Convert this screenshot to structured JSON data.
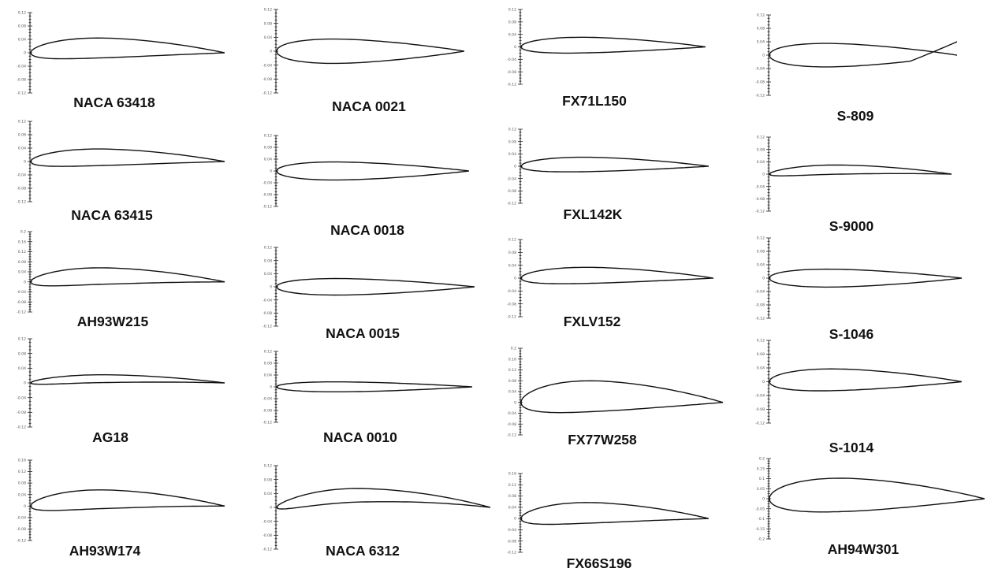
{
  "airfoils": [
    {
      "name": "NACA 63418",
      "type": "cambered",
      "t": 0.18,
      "camber": 0.025,
      "ticks": [
        "0.12",
        "0.08",
        "0.04",
        "0",
        "-0.04",
        "-0.08",
        "-0.12"
      ]
    },
    {
      "name": "NACA 63415",
      "type": "cambered",
      "t": 0.15,
      "camber": 0.022,
      "ticks": [
        "0.12",
        "0.08",
        "0.04",
        "0",
        "-0.04",
        "-0.08",
        "-0.12"
      ]
    },
    {
      "name": "AH93W215",
      "type": "cambered",
      "t": 0.15,
      "camber": 0.03,
      "ticks": [
        "0.2",
        "0.16",
        "0.12",
        "0.08",
        "0.04",
        "0",
        "-0.04",
        "-0.08",
        "-0.12"
      ]
    },
    {
      "name": "AG18",
      "type": "thin",
      "t": 0.065,
      "camber": 0.02,
      "ticks": [
        "0.12",
        "0.08",
        "0.04",
        "0",
        "-0.04",
        "-0.08",
        "-0.12"
      ]
    },
    {
      "name": "AH93W174",
      "type": "cambered",
      "t": 0.17,
      "camber": 0.035,
      "ticks": [
        "0.16",
        "0.12",
        "0.08",
        "0.04",
        "0",
        "-0.04",
        "-0.08",
        "-0.12"
      ]
    },
    {
      "name": "NACA 0021",
      "type": "symmetric",
      "t": 0.21,
      "camber": 0,
      "ticks": [
        "0.12",
        "0.08",
        "0.04",
        "0",
        "-0.04",
        "-0.08",
        "-0.12"
      ]
    },
    {
      "name": "NACA 0018",
      "type": "symmetric",
      "t": 0.18,
      "camber": 0,
      "ticks": [
        "0.12",
        "0.08",
        "0.04",
        "0",
        "-0.04",
        "-0.08",
        "-0.12"
      ]
    },
    {
      "name": "NACA 0015",
      "type": "symmetric",
      "t": 0.15,
      "camber": 0,
      "ticks": [
        "0.12",
        "0.08",
        "0.04",
        "0",
        "-0.04",
        "-0.08",
        "-0.12"
      ]
    },
    {
      "name": "NACA 0010",
      "type": "symmetric",
      "t": 0.1,
      "camber": 0,
      "ticks": [
        "0.12",
        "0.08",
        "0.04",
        "0",
        "-0.04",
        "-0.08",
        "-0.12"
      ]
    },
    {
      "name": "NACA 6312",
      "type": "high-camber",
      "t": 0.12,
      "camber": 0.06,
      "ticks": [
        "0.12",
        "0.08",
        "0.04",
        "0",
        "-0.04",
        "-0.08",
        "-0.12"
      ]
    },
    {
      "name": "FX71L150",
      "type": "cambered",
      "t": 0.15,
      "camber": 0.01,
      "ticks": [
        "0.12",
        "0.08",
        "0.04",
        "0",
        "-0.04",
        "-0.08",
        "-0.12"
      ]
    },
    {
      "name": "FXL142K",
      "type": "cambered",
      "t": 0.14,
      "camber": 0.01,
      "ticks": [
        "0.12",
        "0.08",
        "0.04",
        "0",
        "-0.04",
        "-0.08",
        "-0.12"
      ]
    },
    {
      "name": "FXLV152",
      "type": "cambered",
      "t": 0.15,
      "camber": 0.015,
      "ticks": [
        "0.12",
        "0.08",
        "0.04",
        "0",
        "-0.04",
        "-0.08",
        "-0.12"
      ]
    },
    {
      "name": "FX77W258",
      "type": "thick",
      "t": 0.26,
      "camber": 0.03,
      "ticks": [
        "0.2",
        "0.16",
        "0.12",
        "0.08",
        "0.04",
        "0",
        "-0.04",
        "-0.08",
        "-0.12"
      ]
    },
    {
      "name": "FX66S196",
      "type": "cambered",
      "t": 0.19,
      "camber": 0.03,
      "ticks": [
        "0.16",
        "0.12",
        "0.08",
        "0.04",
        "0",
        "-0.04",
        "-0.08",
        "-0.12"
      ]
    },
    {
      "name": "S-809",
      "type": "s809",
      "t": 0.21,
      "camber": 0,
      "ticks": [
        "0.12",
        "0.08",
        "0.04",
        "0",
        "-0.04",
        "-0.08",
        "-0.12"
      ]
    },
    {
      "name": "S-9000",
      "type": "thin",
      "t": 0.09,
      "camber": 0.025,
      "ticks": [
        "0.12",
        "0.08",
        "0.04",
        "0",
        "-0.04",
        "-0.08",
        "-0.12"
      ]
    },
    {
      "name": "S-1046",
      "type": "symmetric",
      "t": 0.16,
      "camber": 0,
      "ticks": [
        "0.12",
        "0.08",
        "0.04",
        "0",
        "-0.04",
        "-0.08",
        "-0.12"
      ]
    },
    {
      "name": "S-1014",
      "type": "thick",
      "t": 0.19,
      "camber": 0.01,
      "ticks": [
        "0.12",
        "0.08",
        "0.04",
        "0",
        "-0.04",
        "-0.08",
        "-0.12"
      ]
    },
    {
      "name": "AH94W301",
      "type": "thick",
      "t": 0.3,
      "camber": 0.02,
      "ticks": [
        "0.2",
        "0.15",
        "0.1",
        "0.05",
        "0",
        "-0.05",
        "-0.1",
        "-0.15",
        "-0.2"
      ]
    }
  ]
}
